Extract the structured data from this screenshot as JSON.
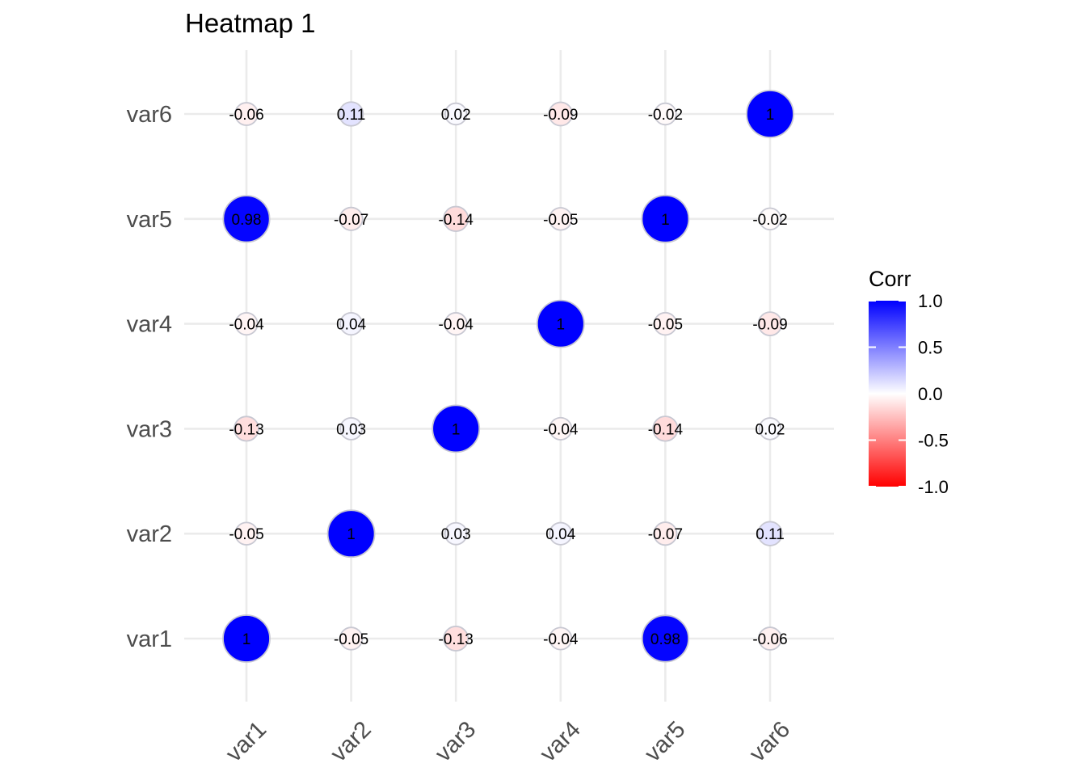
{
  "chart_data": {
    "type": "heatmap",
    "title": "Heatmap 1",
    "xlabel": "",
    "ylabel": "",
    "x_categories": [
      "var1",
      "var2",
      "var3",
      "var4",
      "var5",
      "var6"
    ],
    "y_categories": [
      "var1",
      "var2",
      "var3",
      "var4",
      "var5",
      "var6"
    ],
    "matrix": [
      [
        1,
        -0.05,
        -0.13,
        -0.04,
        0.98,
        -0.06
      ],
      [
        -0.05,
        1,
        0.03,
        0.04,
        -0.07,
        0.11
      ],
      [
        -0.13,
        0.03,
        1,
        -0.04,
        -0.14,
        0.02
      ],
      [
        -0.04,
        0.04,
        -0.04,
        1,
        -0.05,
        -0.09
      ],
      [
        0.98,
        -0.07,
        -0.14,
        -0.05,
        1,
        -0.02
      ],
      [
        -0.06,
        0.11,
        0.02,
        -0.09,
        -0.02,
        1
      ]
    ],
    "marker": "circle",
    "circle_size_by": "abs_value",
    "cell_labels": true,
    "grid": true,
    "legend": {
      "title": "Corr",
      "placement": "right",
      "range": [
        -1,
        1
      ],
      "ticks": [
        1,
        0.5,
        0,
        -0.5,
        -1
      ],
      "tick_labels": [
        "1.0",
        "0.5",
        "0.0",
        "-0.5",
        "-1.0"
      ],
      "colors": {
        "low": "#ff0000",
        "mid": "#ffffff",
        "high": "#0000ff"
      }
    },
    "x_tick_rotation_deg": 45
  }
}
